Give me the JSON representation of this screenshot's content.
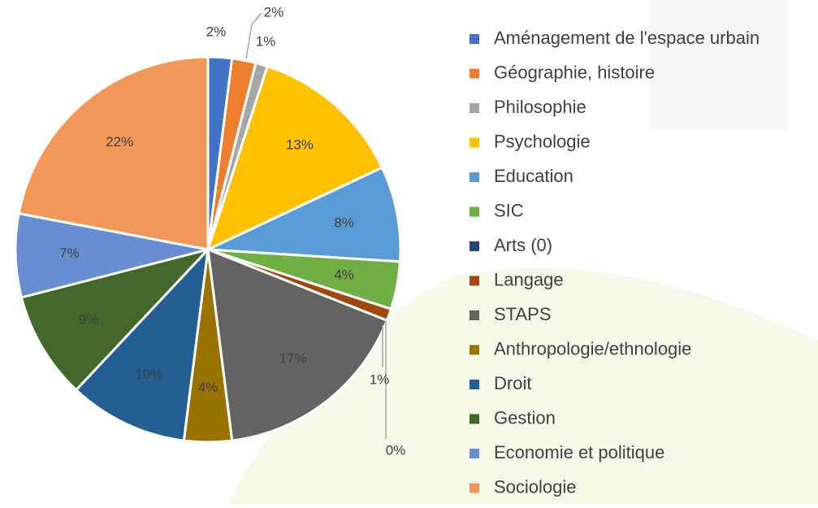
{
  "chart_data": {
    "type": "pie",
    "categories": [
      "Aménagement de l'espace urbain",
      "Géographie, histoire",
      "Philosophie",
      "Psychologie",
      "Education",
      "SIC",
      "Arts (0)",
      "Langage",
      "STAPS",
      "Anthropologie/ethnologie",
      "Droit",
      "Gestion",
      "Economie et politique",
      "Sociologie"
    ],
    "values": [
      2,
      2,
      1,
      13,
      8,
      4,
      0,
      1,
      17,
      4,
      10,
      9,
      7,
      22
    ],
    "value_labels": [
      "2%",
      "2%",
      "1%",
      "13%",
      "8%",
      "4%",
      "0%",
      "1%",
      "17%",
      "4%",
      "10%",
      "9%",
      "7%",
      "22%"
    ],
    "colors": [
      "#4472c4",
      "#ed7d31",
      "#a5a5a5",
      "#ffc000",
      "#5b9bd5",
      "#70ad47",
      "#264478",
      "#9e480e",
      "#636363",
      "#997300",
      "#255e91",
      "#43682b",
      "#698ed0",
      "#f1975a"
    ],
    "legend": "right"
  }
}
